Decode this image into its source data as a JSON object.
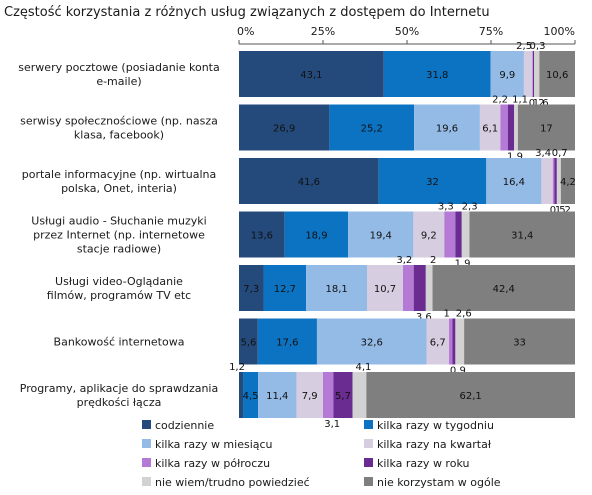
{
  "chart_data": {
    "type": "bar",
    "orientation": "horizontal",
    "stacked": true,
    "title": "Częstość korzystania z różnych usług związanych z dostępem do Internetu",
    "xlim": [
      0,
      100
    ],
    "xticks": [
      "0%",
      "25%",
      "50%",
      "75%",
      "100%"
    ],
    "grid": false,
    "legend_position": "bottom",
    "categories": [
      [
        "serwery pocztowe (posiadanie konta",
        "e-maile)"
      ],
      [
        "serwisy społecznościowe (np. nasza",
        "klasa, facebook)"
      ],
      [
        "portale informacyjne (np. wirtualna",
        "polska, Onet, interia)"
      ],
      [
        "Usługi audio - Słuchanie muzyki",
        "przez Internet (np. internetowe",
        "stacje radiowe)"
      ],
      [
        "Usługi video-Oglądanie",
        "filmów, programów TV etc"
      ],
      [
        "Bankowość internetowa"
      ],
      [
        "Programy, aplikacje do sprawdzania",
        "prędkości łącza"
      ]
    ],
    "series": [
      {
        "name": "codziennie",
        "color": "#244a7c",
        "values": [
          43.1,
          26.9,
          41.6,
          13.6,
          7.3,
          5.6,
          1.2
        ]
      },
      {
        "name": "kilka razy w tygodniu",
        "color": "#0c73c2",
        "values": [
          31.8,
          25.2,
          32.0,
          18.9,
          12.7,
          17.6,
          4.5
        ]
      },
      {
        "name": "kilka razy w miesiącu",
        "color": "#94bbe6",
        "values": [
          9.9,
          19.6,
          16.4,
          19.4,
          18.1,
          32.6,
          11.4
        ]
      },
      {
        "name": "kilka razy na kwartał",
        "color": "#d6cde0",
        "values": [
          2.5,
          6.1,
          3.4,
          9.2,
          10.7,
          6.7,
          7.9
        ]
      },
      {
        "name": "kilka razy w półroczu",
        "color": "#b57ad6",
        "values": [
          0.2,
          2.2,
          0.5,
          3.3,
          3.2,
          1.0,
          3.1
        ]
      },
      {
        "name": "kilka razy w roku",
        "color": "#6a2c91",
        "values": [
          0.3,
          1.9,
          0.7,
          1.9,
          3.6,
          0.9,
          5.7
        ]
      },
      {
        "name": "nie wiem/trudno powiedzieć",
        "color": "#d2d2d2",
        "values": [
          1.6,
          1.1,
          1.2,
          2.3,
          2.0,
          2.6,
          4.1
        ]
      },
      {
        "name": "nie korzystam w ogóle",
        "color": "#7f7f7f",
        "values": [
          10.6,
          17.0,
          4.2,
          31.4,
          42.4,
          33.0,
          62.1
        ]
      }
    ]
  }
}
